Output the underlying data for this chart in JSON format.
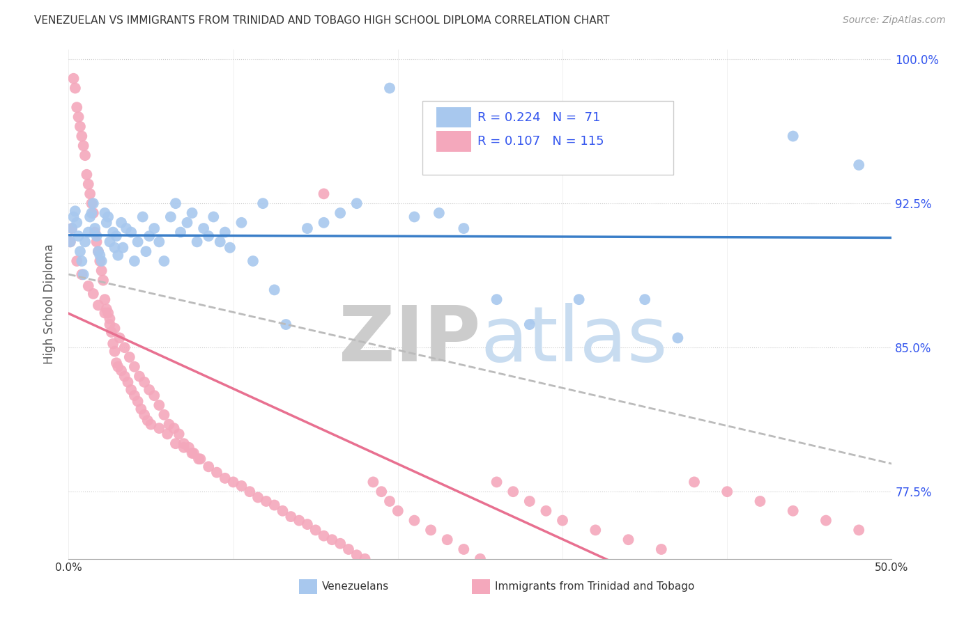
{
  "title": "VENEZUELAN VS IMMIGRANTS FROM TRINIDAD AND TOBAGO HIGH SCHOOL DIPLOMA CORRELATION CHART",
  "source": "Source: ZipAtlas.com",
  "ylabel": "High School Diploma",
  "xlim": [
    0.0,
    0.5
  ],
  "ylim": [
    0.74,
    1.005
  ],
  "yticks": [
    0.775,
    0.85,
    0.925,
    1.0
  ],
  "ytick_labels": [
    "77.5%",
    "85.0%",
    "92.5%",
    "100.0%"
  ],
  "xticks": [
    0.0,
    0.1,
    0.2,
    0.3,
    0.4,
    0.5
  ],
  "xtick_labels": [
    "0.0%",
    "",
    "",
    "",
    "",
    "50.0%"
  ],
  "legend_label_blue": "Venezuelans",
  "legend_label_pink": "Immigrants from Trinidad and Tobago",
  "R_blue": 0.224,
  "N_blue": 71,
  "R_pink": 0.107,
  "N_pink": 115,
  "blue_color": "#A8C8EE",
  "pink_color": "#F4A8BC",
  "line_blue": "#3A7EC8",
  "line_pink": "#E87090",
  "line_dashed": "#BBBBBB",
  "background_color": "#FFFFFF",
  "venezuelan_x": [
    0.001,
    0.002,
    0.003,
    0.004,
    0.005,
    0.006,
    0.007,
    0.008,
    0.009,
    0.01,
    0.012,
    0.013,
    0.014,
    0.015,
    0.016,
    0.017,
    0.018,
    0.019,
    0.02,
    0.022,
    0.023,
    0.024,
    0.025,
    0.027,
    0.028,
    0.029,
    0.03,
    0.032,
    0.033,
    0.035,
    0.038,
    0.04,
    0.042,
    0.045,
    0.047,
    0.049,
    0.052,
    0.055,
    0.058,
    0.062,
    0.065,
    0.068,
    0.072,
    0.075,
    0.078,
    0.082,
    0.085,
    0.088,
    0.092,
    0.095,
    0.098,
    0.105,
    0.112,
    0.118,
    0.125,
    0.132,
    0.145,
    0.155,
    0.165,
    0.175,
    0.195,
    0.21,
    0.225,
    0.24,
    0.26,
    0.28,
    0.31,
    0.35,
    0.37,
    0.44,
    0.48
  ],
  "venezuelan_y": [
    0.905,
    0.912,
    0.918,
    0.921,
    0.915,
    0.908,
    0.9,
    0.895,
    0.888,
    0.905,
    0.91,
    0.918,
    0.92,
    0.925,
    0.912,
    0.908,
    0.9,
    0.898,
    0.895,
    0.92,
    0.915,
    0.918,
    0.905,
    0.91,
    0.902,
    0.908,
    0.898,
    0.915,
    0.902,
    0.912,
    0.91,
    0.895,
    0.905,
    0.918,
    0.9,
    0.908,
    0.912,
    0.905,
    0.895,
    0.918,
    0.925,
    0.91,
    0.915,
    0.92,
    0.905,
    0.912,
    0.908,
    0.918,
    0.905,
    0.91,
    0.902,
    0.915,
    0.895,
    0.925,
    0.88,
    0.862,
    0.912,
    0.915,
    0.92,
    0.925,
    0.985,
    0.918,
    0.92,
    0.912,
    0.875,
    0.862,
    0.875,
    0.875,
    0.855,
    0.96,
    0.945
  ],
  "trinidad_x": [
    0.001,
    0.002,
    0.003,
    0.004,
    0.005,
    0.006,
    0.007,
    0.008,
    0.009,
    0.01,
    0.011,
    0.012,
    0.013,
    0.014,
    0.015,
    0.016,
    0.017,
    0.018,
    0.019,
    0.02,
    0.021,
    0.022,
    0.023,
    0.024,
    0.025,
    0.026,
    0.027,
    0.028,
    0.029,
    0.03,
    0.032,
    0.034,
    0.036,
    0.038,
    0.04,
    0.042,
    0.044,
    0.046,
    0.048,
    0.05,
    0.055,
    0.06,
    0.065,
    0.07,
    0.075,
    0.08,
    0.085,
    0.09,
    0.095,
    0.1,
    0.105,
    0.11,
    0.115,
    0.12,
    0.125,
    0.13,
    0.135,
    0.14,
    0.145,
    0.15,
    0.155,
    0.16,
    0.165,
    0.17,
    0.175,
    0.18,
    0.185,
    0.19,
    0.195,
    0.2,
    0.21,
    0.22,
    0.23,
    0.24,
    0.25,
    0.26,
    0.27,
    0.28,
    0.29,
    0.3,
    0.32,
    0.34,
    0.36,
    0.38,
    0.4,
    0.42,
    0.44,
    0.46,
    0.48,
    0.005,
    0.008,
    0.012,
    0.015,
    0.018,
    0.022,
    0.025,
    0.028,
    0.031,
    0.034,
    0.037,
    0.04,
    0.043,
    0.046,
    0.049,
    0.052,
    0.055,
    0.058,
    0.061,
    0.064,
    0.067,
    0.07,
    0.073,
    0.076,
    0.079,
    0.155
  ],
  "trinidad_y": [
    0.905,
    0.912,
    0.99,
    0.985,
    0.975,
    0.97,
    0.965,
    0.96,
    0.955,
    0.95,
    0.94,
    0.935,
    0.93,
    0.925,
    0.92,
    0.91,
    0.905,
    0.9,
    0.895,
    0.89,
    0.885,
    0.875,
    0.87,
    0.868,
    0.862,
    0.858,
    0.852,
    0.848,
    0.842,
    0.84,
    0.838,
    0.835,
    0.832,
    0.828,
    0.825,
    0.822,
    0.818,
    0.815,
    0.812,
    0.81,
    0.808,
    0.805,
    0.8,
    0.798,
    0.795,
    0.792,
    0.788,
    0.785,
    0.782,
    0.78,
    0.778,
    0.775,
    0.772,
    0.77,
    0.768,
    0.765,
    0.762,
    0.76,
    0.758,
    0.755,
    0.752,
    0.75,
    0.748,
    0.745,
    0.742,
    0.74,
    0.78,
    0.775,
    0.77,
    0.765,
    0.76,
    0.755,
    0.75,
    0.745,
    0.74,
    0.78,
    0.775,
    0.77,
    0.765,
    0.76,
    0.755,
    0.75,
    0.745,
    0.78,
    0.775,
    0.77,
    0.765,
    0.76,
    0.755,
    0.895,
    0.888,
    0.882,
    0.878,
    0.872,
    0.868,
    0.865,
    0.86,
    0.855,
    0.85,
    0.845,
    0.84,
    0.835,
    0.832,
    0.828,
    0.825,
    0.82,
    0.815,
    0.81,
    0.808,
    0.805,
    0.8,
    0.798,
    0.795,
    0.792,
    0.93
  ]
}
